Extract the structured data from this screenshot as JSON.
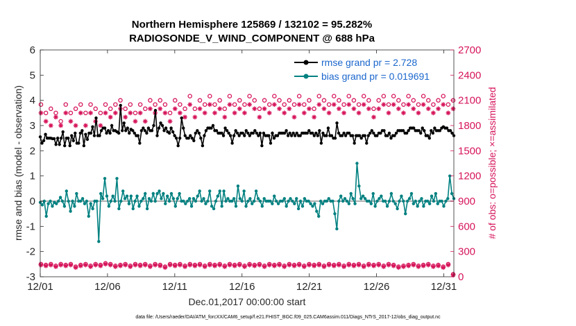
{
  "colors": {
    "rmse": "#000000",
    "bias": "#008080",
    "obs": "#d6145a",
    "legend_text": "#1a66cc",
    "zero_line": "#b0b0b0"
  },
  "chart_data": {
    "type": "line",
    "title": "Northern Hemisphere 125869 / 132102 = 95.282%",
    "subtitle": "RADIOSONDE_V_WIND_COMPONENT @ 688 hPa",
    "xlabel": "Dec.01,2017 00:00:00 start",
    "ylabel": "rmse and bias (model - observation)",
    "y2label": "# of obs: o=possible; ×=assimilated",
    "xlim": [
      1,
      31.75
    ],
    "ylim": [
      -3,
      6
    ],
    "y2lim": [
      0,
      2700
    ],
    "xticks": [
      1,
      6,
      11,
      16,
      21,
      26,
      31
    ],
    "xticklabels": [
      "12/01",
      "12/06",
      "12/11",
      "12/16",
      "12/21",
      "12/26",
      "12/31"
    ],
    "yticks": [
      -3,
      -2,
      -1,
      0,
      1,
      2,
      3,
      4,
      5,
      6
    ],
    "yticklabels": [
      "-3",
      "-2",
      "-1",
      "0",
      "1",
      "2",
      "3",
      "4",
      "5",
      "6"
    ],
    "y2ticks": [
      0,
      300,
      600,
      900,
      1200,
      1500,
      1800,
      2100,
      2400,
      2700
    ],
    "y2ticklabels": [
      "0",
      "300",
      "600",
      "900",
      "1200",
      "1500",
      "1800",
      "2100",
      "2400",
      "2700"
    ],
    "legend": [
      {
        "name": "rmse",
        "label": "rmse grand pr = 2.728"
      },
      {
        "name": "bias",
        "label": "bias grand pr = 0.019691"
      }
    ],
    "footer": "data file: /Users/raeder/DAI/ATM_forcXX/CAM6_setup/f.e21.FHIST_BGC.f09_025.CAM6assim.011/Diags_NTrS_2017-12/obs_diag_output.nc",
    "series": [
      {
        "name": "rmse",
        "values": [
          2.55,
          2.3,
          2.4,
          2.65,
          2.5,
          2.5,
          2.5,
          2.48,
          2.48,
          2.25,
          2.5,
          2.25,
          2.5,
          2.75,
          2.2,
          2.5,
          2.5,
          2.2,
          2.6,
          2.4,
          2.7,
          2.3,
          2.3,
          2.7,
          2.8,
          2.2,
          2.65,
          2.45,
          2.7,
          2.7,
          2.95,
          2.6,
          3.3,
          2.6,
          2.6,
          2.8,
          2.9,
          2.9,
          2.7,
          2.8,
          2.7,
          3.0,
          2.8,
          2.8,
          2.75,
          2.7,
          3.8,
          2.8,
          3.1,
          2.8,
          2.9,
          2.7,
          2.85,
          2.8,
          2.7,
          2.6,
          2.6,
          2.3,
          2.8,
          2.9,
          2.8,
          2.7,
          2.9,
          2.8,
          2.8,
          3.0,
          3.6,
          2.6,
          2.9,
          3.1,
          3.0,
          2.8,
          2.9,
          2.75,
          2.7,
          2.9,
          2.75,
          2.6,
          2.5,
          2.2,
          2.5,
          3.3,
          2.9,
          2.6,
          2.5,
          2.5,
          2.6,
          2.5,
          2.4,
          2.7,
          2.8,
          2.7,
          2.5,
          2.2,
          2.6,
          2.8,
          2.9,
          2.9,
          2.9,
          3.0,
          2.8,
          2.8,
          2.7,
          2.7,
          2.7,
          2.6,
          2.9,
          2.8,
          2.7,
          2.6,
          2.3,
          2.6,
          2.8,
          2.7,
          2.6,
          2.7,
          2.7,
          2.6,
          2.8,
          2.7,
          2.6,
          2.7,
          2.7,
          2.8,
          2.7,
          2.6,
          2.7,
          2.2,
          2.7,
          2.6,
          2.6,
          2.6,
          2.3,
          2.7,
          2.5,
          2.6,
          2.6,
          2.7,
          2.7,
          2.7,
          2.7,
          2.8,
          2.6,
          2.7,
          2.6,
          2.7,
          2.6,
          2.7,
          2.6,
          2.6,
          2.7,
          2.7,
          2.7,
          2.7,
          2.8,
          2.7,
          2.7,
          2.6,
          2.7,
          2.6,
          2.8,
          2.3,
          2.7,
          2.6,
          2.6,
          2.9,
          2.6,
          2.6,
          2.5,
          2.5,
          3.1,
          2.7,
          2.6,
          2.6,
          2.7,
          2.6,
          2.7,
          2.7,
          2.6,
          2.6,
          2.3,
          2.6,
          2.6,
          2.6,
          2.5,
          2.6,
          2.6,
          2.3,
          2.6,
          2.7,
          2.8,
          2.7,
          2.6,
          2.6,
          2.7,
          2.7,
          2.8,
          2.8,
          2.6,
          2.6,
          2.7,
          2.5,
          2.6,
          2.6,
          2.7,
          2.8,
          2.8,
          2.8,
          2.8,
          2.7,
          2.7,
          2.8,
          2.9,
          2.9,
          2.9,
          2.8,
          2.8,
          2.8,
          2.7,
          2.9,
          2.8,
          2.6,
          2.6,
          2.5,
          2.8,
          2.7,
          2.9,
          2.8,
          2.8,
          2.8,
          2.9,
          2.95,
          2.9,
          2.9,
          2.8,
          2.8,
          2.7,
          2.6
        ]
      },
      {
        "name": "bias",
        "values": [
          -0.05,
          -0.15,
          0.0,
          -0.6,
          -0.1,
          0.0,
          -0.2,
          -0.05,
          -0.1,
          0.0,
          0.15,
          0.0,
          -0.2,
          0.4,
          0.0,
          -0.4,
          0.0,
          -0.2,
          0.3,
          0.0,
          0.0,
          0.1,
          -0.1,
          0.0,
          -0.6,
          -0.1,
          -0.3,
          0.0,
          0.0,
          -1.6,
          0.3,
          0.1,
          0.9,
          0.2,
          -0.2,
          0.0,
          0.2,
          0.0,
          0.9,
          -0.3,
          0.0,
          0.4,
          0.1,
          0.2,
          -0.1,
          0.2,
          -0.3,
          0.0,
          0.2,
          -0.2,
          0.0,
          0.1,
          0.3,
          -0.3,
          0.1,
          0.0,
          0.3,
          0.0,
          0.3,
          0.4,
          0.1,
          0.3,
          -0.1,
          0.2,
          0.0,
          0.3,
          0.1,
          -0.2,
          0.1,
          0.3,
          0.0,
          0.0,
          -0.1,
          0.0,
          0.1,
          -0.2,
          0.1,
          0.0,
          0.2,
          0.4,
          0.0,
          0.1,
          -0.1,
          0.0,
          0.4,
          -0.2,
          -0.3,
          0.0,
          0.2,
          0.4,
          -0.2,
          0.4,
          0.0,
          0.1,
          0.0,
          0.0,
          0.1,
          -0.2,
          0.6,
          0.1,
          0.0,
          0.4,
          -0.2,
          0.0,
          0.1,
          -0.1,
          0.0,
          0.4,
          0.1,
          0.0,
          -0.2,
          0.1,
          0.0,
          0.0,
          0.0,
          -0.1,
          0.2,
          0.0,
          -0.1,
          0.0,
          0.0,
          0.1,
          -0.2,
          0.0,
          0.1,
          0.0,
          -0.1,
          0.1,
          -0.3,
          0.0,
          -0.2,
          0.1,
          0.0,
          0.0,
          -0.1,
          -0.2,
          -0.1,
          -0.4,
          -0.6,
          0.0,
          -0.1,
          0.0,
          0.0,
          0.1,
          0.0,
          0.0,
          -0.5,
          -1.1,
          0.0,
          0.2,
          0.0,
          0.1,
          0.0,
          -0.1,
          0.3,
          0.1,
          -0.1,
          1.5,
          0.6,
          0.1,
          0.2,
          0.1,
          0.0,
          0.0,
          -0.1,
          0.3,
          -0.2,
          0.0,
          0.1,
          0.2,
          0.0,
          0.0,
          -0.2,
          0.0,
          0.3,
          0.0,
          -0.1,
          -0.3,
          0.0,
          0.2,
          0.0,
          -0.5,
          0.0,
          0.1,
          0.3,
          -0.1,
          0.0,
          -0.2,
          0.0,
          0.1,
          -0.2,
          0.0,
          0.0,
          -0.1,
          0.2,
          0.0,
          0.3,
          -0.1,
          0.0,
          0.0,
          -0.2,
          0.0,
          0.1,
          1.0,
          0.3,
          0.1
        ]
      }
    ],
    "obs_possible": [
      2050,
      1950,
      2000,
      1950,
      1850,
      2050,
      1950,
      2000,
      2050,
      1950,
      2050,
      2000,
      1950,
      2050,
      2000,
      2050,
      2100,
      2000,
      2050,
      1950,
      2050,
      2000,
      2100,
      2050,
      2100,
      2050,
      1950,
      2100,
      2050,
      2000,
      2150,
      2000,
      2100,
      2050,
      2150,
      2050,
      2100,
      2000,
      2150,
      2050,
      2100,
      2050,
      2150,
      2100,
      2000,
      2100,
      2050,
      2150,
      2100,
      2050,
      2100,
      2050,
      2150,
      2050,
      2100,
      2000,
      2150,
      2100,
      2050,
      2150,
      2100,
      2050,
      2150,
      2100,
      2050,
      2150,
      2100,
      2000,
      2100,
      2150,
      2050,
      2150,
      2100,
      2050,
      2150,
      2100,
      2050,
      2150,
      2100,
      2050,
      2100,
      2150,
      2050,
      2100
    ],
    "obs_assimilated": [
      1950,
      1850,
      1800,
      1900,
      1800,
      1950,
      1850,
      1800,
      1950,
      1800,
      1950,
      1850,
      1800,
      1950,
      1900,
      1950,
      2000,
      1900,
      1950,
      1850,
      1950,
      1850,
      2000,
      1950,
      2000,
      1950,
      1850,
      2000,
      1950,
      1900,
      2050,
      1900,
      2000,
      1950,
      2050,
      1950,
      2000,
      1900,
      2050,
      1950,
      2000,
      1950,
      2050,
      2000,
      1900,
      2000,
      1950,
      2050,
      2000,
      1950,
      2000,
      1900,
      2050,
      1950,
      2000,
      1900,
      2050,
      2000,
      1950,
      2050,
      2000,
      1950,
      2050,
      2000,
      1950,
      2050,
      2000,
      1900,
      2000,
      2050,
      1950,
      2050,
      2000,
      1950,
      2050,
      2000,
      1950,
      2050,
      2000,
      1950,
      2000,
      2050,
      1950,
      2000
    ],
    "obs_low_possible": [
      150,
      140,
      150,
      130,
      150,
      140,
      150,
      120,
      140,
      150,
      130,
      150,
      140,
      160,
      150,
      130,
      140,
      150,
      130,
      150,
      140,
      150,
      130,
      150,
      140,
      120,
      150,
      140,
      150,
      130,
      150,
      140,
      150,
      130,
      150,
      140,
      150,
      130,
      150,
      140,
      150,
      130,
      150,
      140,
      150,
      130,
      150,
      140,
      150,
      130,
      150,
      140,
      150,
      130,
      150,
      140,
      150,
      130,
      150,
      140,
      150,
      130,
      150,
      140,
      150,
      130,
      150,
      140,
      150,
      130,
      150,
      140,
      120,
      130,
      140,
      150,
      130,
      140,
      150,
      130,
      140,
      120,
      150,
      30
    ],
    "obs_low_assimilated": [
      140,
      130,
      140,
      120,
      140,
      130,
      140,
      110,
      130,
      140,
      120,
      140,
      130,
      150,
      140,
      120,
      130,
      140,
      120,
      140,
      130,
      140,
      120,
      140,
      130,
      110,
      140,
      130,
      140,
      120,
      140,
      130,
      140,
      120,
      140,
      130,
      140,
      120,
      140,
      130,
      140,
      120,
      140,
      130,
      140,
      120,
      140,
      130,
      140,
      120,
      140,
      130,
      140,
      120,
      140,
      130,
      140,
      120,
      140,
      130,
      140,
      120,
      140,
      130,
      140,
      120,
      140,
      130,
      140,
      120,
      140,
      130,
      110,
      120,
      130,
      140,
      120,
      130,
      140,
      120,
      130,
      110,
      140,
      20
    ]
  }
}
